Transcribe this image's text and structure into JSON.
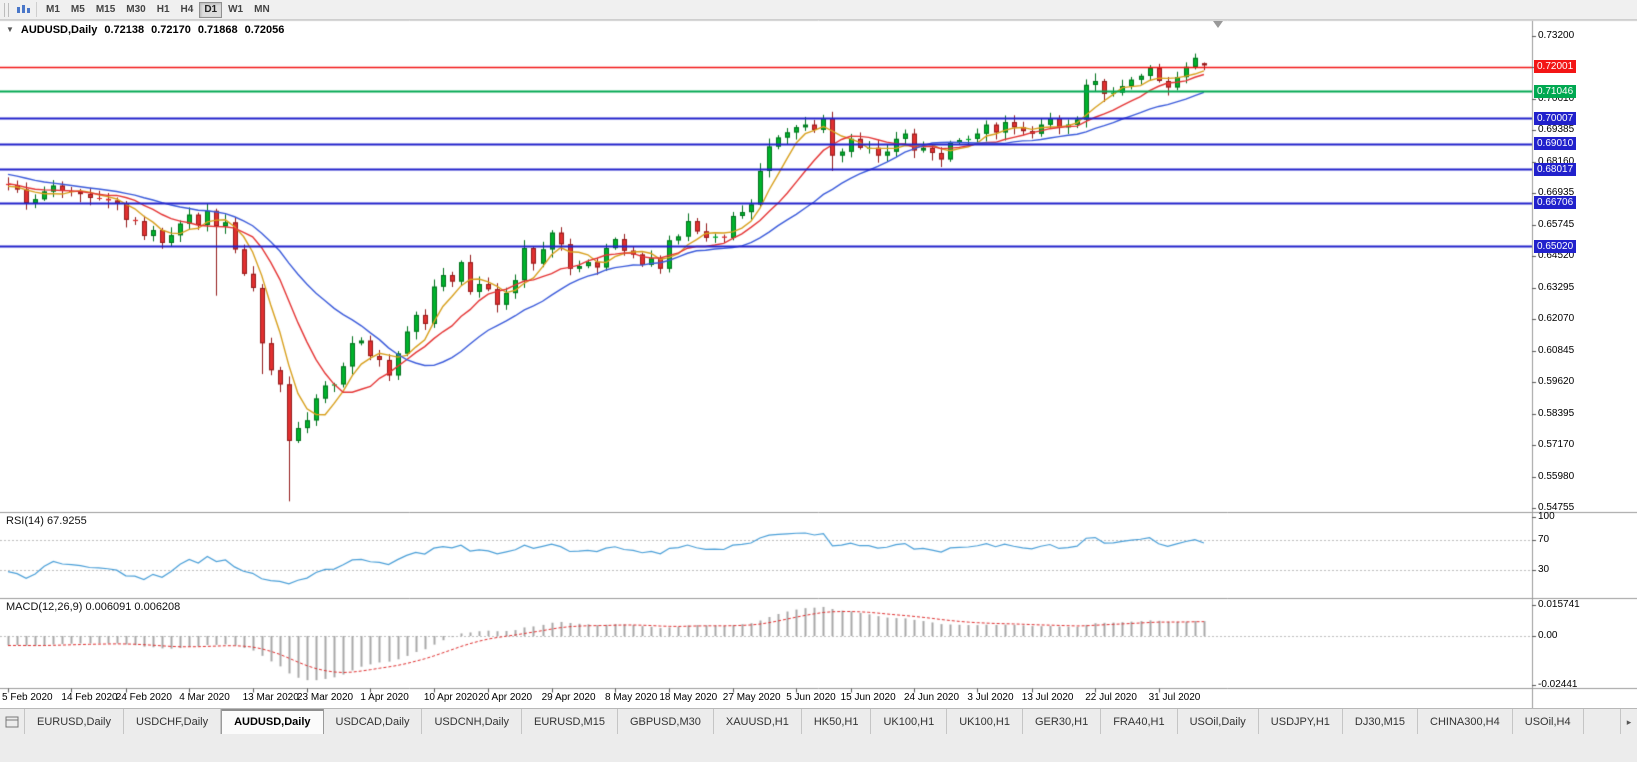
{
  "toolbar": {
    "timeframes": [
      {
        "label": "M1",
        "active": false
      },
      {
        "label": "M5",
        "active": false
      },
      {
        "label": "M15",
        "active": false
      },
      {
        "label": "M30",
        "active": false
      },
      {
        "label": "H1",
        "active": false
      },
      {
        "label": "H4",
        "active": false
      },
      {
        "label": "D1",
        "active": true
      },
      {
        "label": "W1",
        "active": false
      },
      {
        "label": "MN",
        "active": false
      }
    ]
  },
  "icons": {
    "collapse": "▼",
    "tab_scroll_right": "▸"
  },
  "chart": {
    "header": {
      "symbol": "AUDUSD,Daily",
      "open": "0.72138",
      "high": "0.72170",
      "low": "0.71868",
      "close": "0.72056"
    },
    "price_axis": [
      "0.73200",
      "0.71975",
      "0.70610",
      "0.69385",
      "0.68160",
      "0.66935",
      "0.65745",
      "0.64520",
      "0.63295",
      "0.62070",
      "0.60845",
      "0.59620",
      "0.58395",
      "0.57170",
      "0.55980",
      "0.54755"
    ],
    "date_axis": [
      {
        "label": "5 Feb 2020",
        "candle": 0
      },
      {
        "label": "14 Feb 2020",
        "candle": 7
      },
      {
        "label": "24 Feb 2020",
        "candle": 13
      },
      {
        "label": "4 Mar 2020",
        "candle": 20
      },
      {
        "label": "13 Mar 2020",
        "candle": 27
      },
      {
        "label": "23 Mar 2020",
        "candle": 33
      },
      {
        "label": "1 Apr 2020",
        "candle": 40
      },
      {
        "label": "10 Apr 2020",
        "candle": 47
      },
      {
        "label": "20 Apr 2020",
        "candle": 53
      },
      {
        "label": "29 Apr 2020",
        "candle": 60
      },
      {
        "label": "8 May 2020",
        "candle": 67
      },
      {
        "label": "18 May 2020",
        "candle": 73
      },
      {
        "label": "27 May 2020",
        "candle": 80
      },
      {
        "label": "5 Jun 2020",
        "candle": 87
      },
      {
        "label": "15 Jun 2020",
        "candle": 93
      },
      {
        "label": "24 Jun 2020",
        "candle": 100
      },
      {
        "label": "3 Jul 2020",
        "candle": 107
      },
      {
        "label": "13 Jul 2020",
        "candle": 113
      },
      {
        "label": "22 Jul 2020",
        "candle": 120
      },
      {
        "label": "31 Jul 2020",
        "candle": 127
      }
    ],
    "levels": [
      {
        "price": 0.72001,
        "label": "0.72001",
        "color": "red"
      },
      {
        "price": 0.71046,
        "label": "0.71046",
        "color": "green"
      },
      {
        "price": 0.70007,
        "label": "0.70007",
        "color": "blue"
      },
      {
        "price": 0.6901,
        "label": "0.69010",
        "color": "blue"
      },
      {
        "price": 0.68017,
        "label": "0.68017",
        "color": "blue"
      },
      {
        "price": 0.66706,
        "label": "0.66706",
        "color": "blue"
      },
      {
        "price": 0.6502,
        "label": "0.65020",
        "color": "blue"
      }
    ]
  },
  "rsi_panel": {
    "header": "RSI(14) 67.9255",
    "labels": [
      {
        "value": 100,
        "label": "100"
      },
      {
        "value": 70,
        "label": "70"
      },
      {
        "value": 30,
        "label": "30"
      }
    ]
  },
  "macd_panel": {
    "header": "MACD(12,26,9) 0.006091 0.006208",
    "labels": [
      {
        "value": 0.015741,
        "label": "0.015741"
      },
      {
        "value": 0,
        "label": "0.00"
      },
      {
        "value": -0.02441,
        "label": "-0.02441"
      }
    ]
  },
  "tabs": [
    {
      "label": "EURUSD,Daily",
      "active": false
    },
    {
      "label": "USDCHF,Daily",
      "active": false
    },
    {
      "label": "AUDUSD,Daily",
      "active": true
    },
    {
      "label": "USDCAD,Daily",
      "active": false
    },
    {
      "label": "USDCNH,Daily",
      "active": false
    },
    {
      "label": "EURUSD,M15",
      "active": false
    },
    {
      "label": "GBPUSD,M30",
      "active": false
    },
    {
      "label": "XAUUSD,H1",
      "active": false
    },
    {
      "label": "HK50,H1",
      "active": false
    },
    {
      "label": "UK100,H1",
      "active": false
    },
    {
      "label": "UK100,H1",
      "active": false
    },
    {
      "label": "GER30,H1",
      "active": false
    },
    {
      "label": "FRA40,H1",
      "active": false
    },
    {
      "label": "USOil,Daily",
      "active": false
    },
    {
      "label": "USDJPY,H1",
      "active": false
    },
    {
      "label": "DJ30,M15",
      "active": false
    },
    {
      "label": "CHINA300,H4",
      "active": false
    },
    {
      "label": "USOil,H4",
      "active": false
    }
  ],
  "colors": {
    "candle_up": "#00b32c",
    "candle_up_border": "#00711c",
    "candle_down": "#e13030",
    "candle_down_border": "#931b1b",
    "ma_fast": "#d8a01d",
    "ma_mid": "#e53535",
    "ma_slow": "#3b5bdb",
    "level_red": "#f31515",
    "level_green": "#00a851",
    "level_blue": "#2121cc",
    "rsi_line": "#4a9fd8",
    "macd_histogram": "#a8a8a8",
    "macd_signal": "#e03030",
    "dotted_level": "#bdbdbd",
    "separator": "#9a9a9a",
    "axis_text": "#000000"
  },
  "chart_data": {
    "type": "candlestick",
    "title": "AUDUSD,Daily",
    "symbol": "AUDUSD",
    "timeframe": "Daily",
    "last_bar": {
      "open": 0.72138,
      "high": 0.7217,
      "low": 0.71868,
      "close": 0.72056
    },
    "y_axis": {
      "min": 0.54755,
      "max": 0.732,
      "tick_step": 0.01225
    },
    "x_range": [
      "5 Feb 2020",
      "31 Jul 2020"
    ],
    "horizontal_levels": [
      0.72001,
      0.71046,
      0.70007,
      0.6901,
      0.68017,
      0.66706,
      0.6502
    ],
    "moving_averages": [
      {
        "period": 5,
        "color_key": "ma_fast"
      },
      {
        "period": 10,
        "color_key": "ma_mid"
      },
      {
        "period": 20,
        "color_key": "ma_slow"
      }
    ],
    "indicators": {
      "rsi": {
        "period": 14,
        "current": 67.9255,
        "levels": [
          30,
          70
        ]
      },
      "macd": {
        "fast": 12,
        "slow": 26,
        "signal": 9,
        "value": 0.006091,
        "signal_value": 0.006208,
        "scale_max": 0.015741,
        "scale_min": -0.02441
      }
    },
    "history_closes": [
      0.7,
      0.699,
      0.6978,
      0.6985,
      0.6995,
      0.7005,
      0.6992,
      0.698,
      0.6968,
      0.6975,
      0.696,
      0.6945,
      0.693,
      0.6938,
      0.6925,
      0.6905,
      0.689,
      0.688,
      0.6895,
      0.6885,
      0.687,
      0.6855,
      0.684,
      0.6852,
      0.6838,
      0.682,
      0.6805,
      0.6815,
      0.68,
      0.6785,
      0.677,
      0.6778,
      0.6762,
      0.675,
      0.674,
      0.6748,
      0.6735,
      0.6725,
      0.673,
      0.6745
    ],
    "closes": [
      0.674,
      0.6723,
      0.667,
      0.6685,
      0.6715,
      0.6738,
      0.6718,
      0.6713,
      0.6705,
      0.669,
      0.6687,
      0.668,
      0.6668,
      0.6605,
      0.66,
      0.6542,
      0.6565,
      0.6515,
      0.6545,
      0.659,
      0.6625,
      0.6585,
      0.664,
      0.658,
      0.6595,
      0.649,
      0.6395,
      0.634,
      0.6125,
      0.602,
      0.5965,
      0.5745,
      0.5795,
      0.5825,
      0.591,
      0.596,
      0.5965,
      0.6035,
      0.6125,
      0.6135,
      0.6075,
      0.606,
      0.6,
      0.6085,
      0.617,
      0.6235,
      0.62,
      0.6345,
      0.639,
      0.6365,
      0.644,
      0.6325,
      0.6355,
      0.6335,
      0.6275,
      0.632,
      0.637,
      0.6495,
      0.6435,
      0.649,
      0.6555,
      0.651,
      0.6415,
      0.6425,
      0.644,
      0.642,
      0.6495,
      0.653,
      0.6485,
      0.647,
      0.643,
      0.6455,
      0.6415,
      0.6525,
      0.654,
      0.66,
      0.656,
      0.6535,
      0.654,
      0.6535,
      0.662,
      0.6635,
      0.6665,
      0.6795,
      0.689,
      0.6925,
      0.6945,
      0.6965,
      0.6975,
      0.6955,
      0.7,
      0.6855,
      0.687,
      0.692,
      0.6885,
      0.6885,
      0.6855,
      0.687,
      0.692,
      0.694,
      0.6875,
      0.6885,
      0.6865,
      0.684,
      0.6905,
      0.6915,
      0.692,
      0.694,
      0.6975,
      0.6945,
      0.6985,
      0.6965,
      0.695,
      0.694,
      0.6975,
      0.7,
      0.6965,
      0.6975,
      0.6995,
      0.713,
      0.7145,
      0.7095,
      0.71,
      0.7125,
      0.715,
      0.7165,
      0.7195,
      0.7145,
      0.712,
      0.716,
      0.72,
      0.7235,
      0.7206
    ],
    "wick_overrides": {
      "23": {
        "low": 0.631
      },
      "28": {
        "low": 0.6005
      },
      "31": {
        "low": 0.551
      },
      "91": {
        "low": 0.6795
      },
      "132": {
        "open": 0.72138,
        "high": 0.7217,
        "low": 0.71868
      }
    }
  }
}
